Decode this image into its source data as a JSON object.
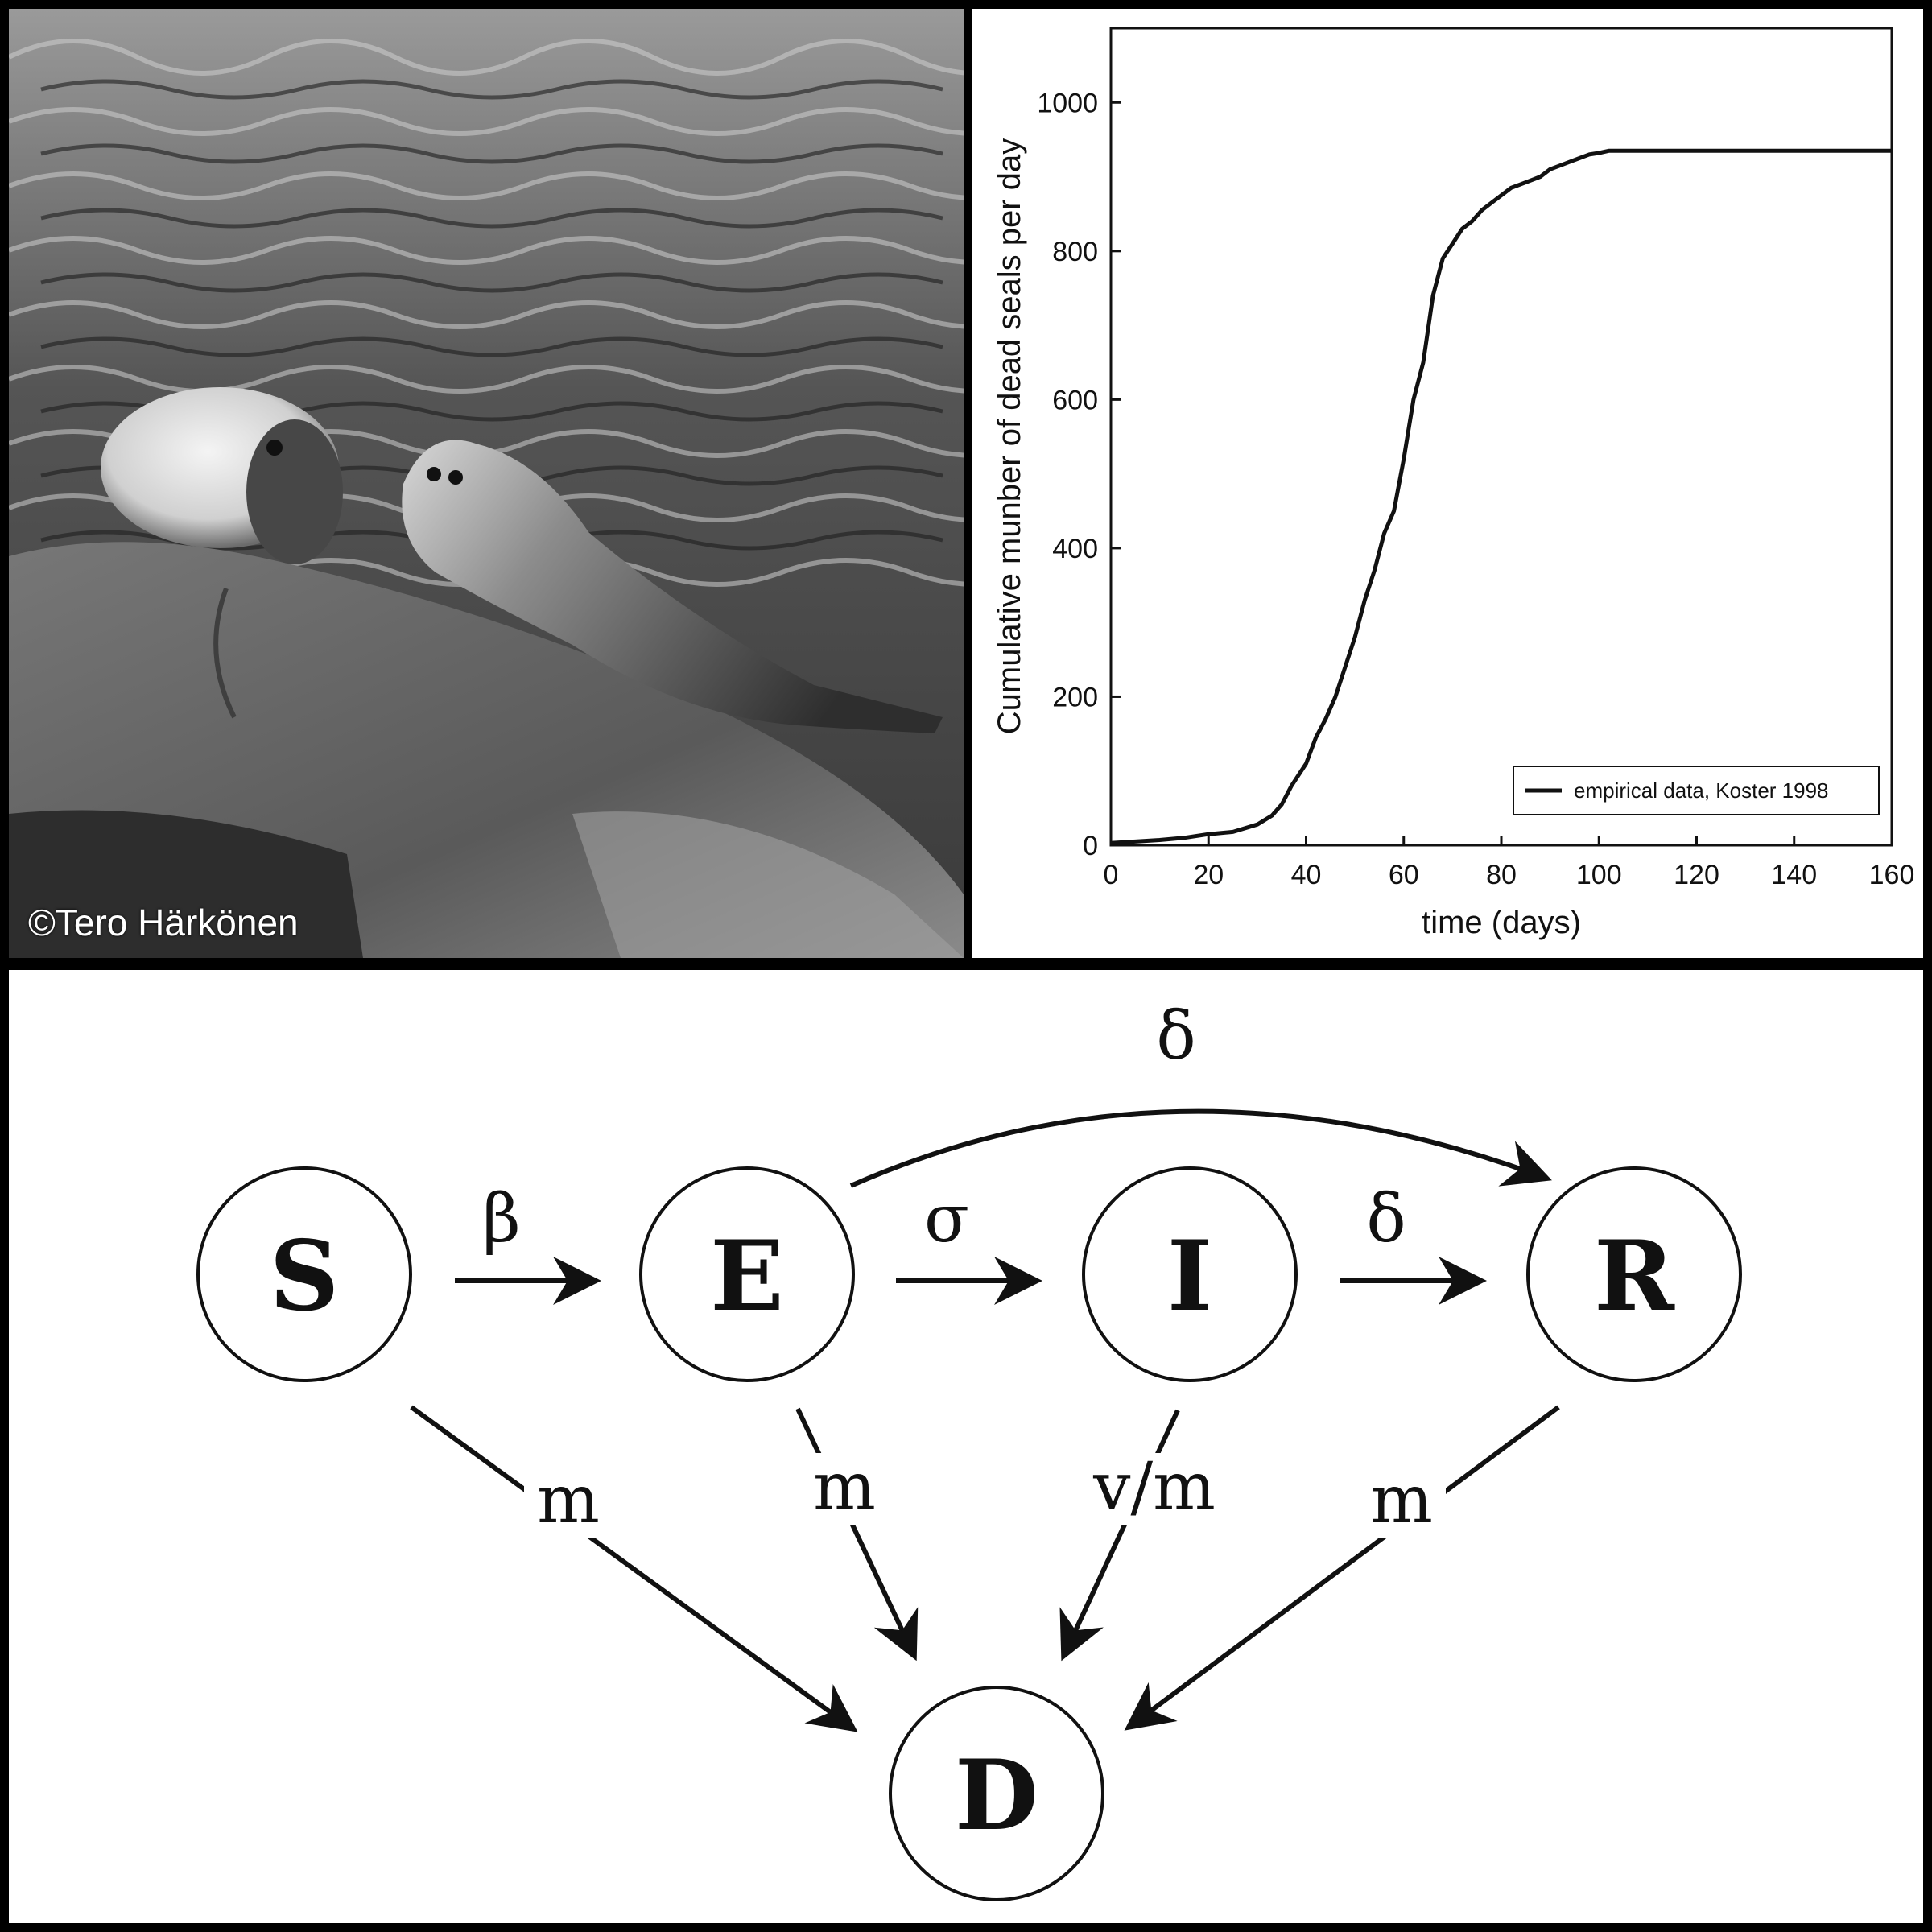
{
  "photo": {
    "credit": "©Tero Härkönen",
    "description_icon": "harbor-seals-on-rock-photo"
  },
  "chart_data": {
    "type": "line",
    "xlabel": "time (days)",
    "ylabel": "Cumulative munber of dead seals per day",
    "xlim": [
      0,
      160
    ],
    "ylim": [
      0,
      1100
    ],
    "xticks": [
      "0",
      "20",
      "40",
      "60",
      "80",
      "100",
      "120",
      "140",
      "160"
    ],
    "yticks": [
      "0",
      "200",
      "400",
      "600",
      "800",
      "1000"
    ],
    "grid": false,
    "legend_position": "bottom-right",
    "series": [
      {
        "name": "empirical data, Koster 1998",
        "x": [
          0,
          5,
          10,
          15,
          20,
          25,
          30,
          33,
          35,
          37,
          40,
          42,
          44,
          46,
          48,
          50,
          52,
          54,
          56,
          58,
          60,
          61,
          62,
          64,
          66,
          68,
          70,
          72,
          74,
          76,
          78,
          80,
          82,
          84,
          86,
          88,
          90,
          92,
          94,
          96,
          98,
          100,
          102,
          104,
          110,
          120,
          130,
          140,
          150,
          160
        ],
        "y": [
          3,
          5,
          7,
          10,
          15,
          18,
          28,
          40,
          55,
          80,
          110,
          145,
          170,
          200,
          240,
          280,
          330,
          370,
          420,
          450,
          520,
          560,
          600,
          650,
          740,
          790,
          810,
          830,
          840,
          855,
          865,
          875,
          885,
          890,
          895,
          900,
          910,
          915,
          920,
          925,
          930,
          932,
          935,
          935,
          935,
          935,
          935,
          935,
          935,
          935
        ]
      }
    ]
  },
  "diagram": {
    "nodes": {
      "S": "S",
      "E": "E",
      "I": "I",
      "R": "R",
      "D": "D"
    },
    "rates": {
      "s_to_e": "β",
      "e_to_i": "σ",
      "i_to_r": "δ",
      "e_to_r": "δ",
      "s_to_d": "m",
      "e_to_d": "m",
      "i_to_d": "v/m",
      "r_to_d": "m"
    }
  }
}
